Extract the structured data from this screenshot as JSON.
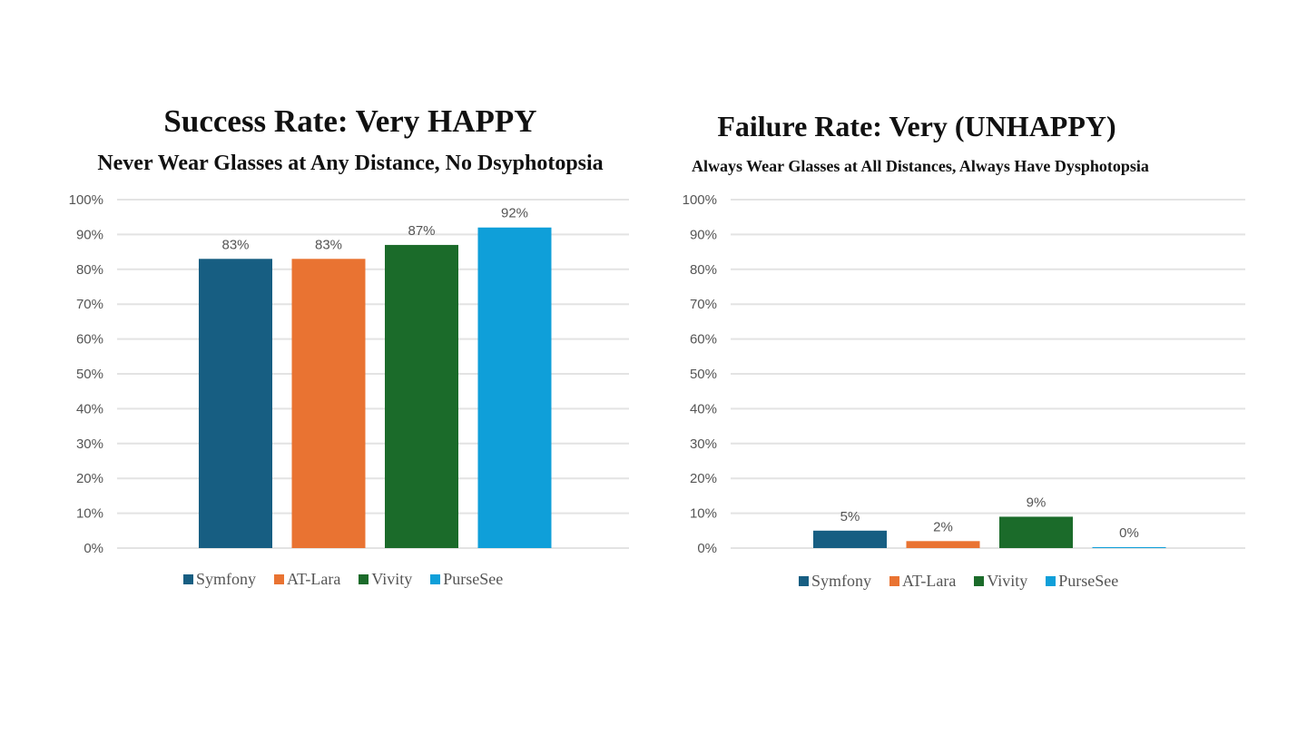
{
  "chart_data": [
    {
      "type": "bar",
      "title": "Success Rate: Very HAPPY",
      "subtitle": "Never Wear Glasses at Any Distance, No Dsyphotopsia",
      "categories": [
        "Symfony",
        "AT-Lara",
        "Vivity",
        "PurseSee"
      ],
      "values": [
        83,
        83,
        87,
        92
      ],
      "data_labels": [
        "83%",
        "83%",
        "87%",
        "92%"
      ],
      "colors": [
        "#175e82",
        "#e97332",
        "#1b6b2a",
        "#0f9fd9"
      ],
      "yticks": [
        "0%",
        "10%",
        "20%",
        "30%",
        "40%",
        "50%",
        "60%",
        "70%",
        "80%",
        "90%",
        "100%"
      ],
      "ylim": [
        0,
        100
      ],
      "grid": true,
      "legend": "bottom"
    },
    {
      "type": "bar",
      "title": "Failure Rate: Very (UNHAPPY)",
      "subtitle": "Always Wear Glasses at All Distances, Always Have Dysphotopsia",
      "categories": [
        "Symfony",
        "AT-Lara",
        "Vivity",
        "PurseSee"
      ],
      "values": [
        5,
        2,
        9,
        0
      ],
      "data_labels": [
        "5%",
        "2%",
        "9%",
        "0%"
      ],
      "colors": [
        "#175e82",
        "#e97332",
        "#1b6b2a",
        "#0f9fd9"
      ],
      "yticks": [
        "0%",
        "10%",
        "20%",
        "30%",
        "40%",
        "50%",
        "60%",
        "70%",
        "80%",
        "90%",
        "100%"
      ],
      "ylim": [
        0,
        100
      ],
      "grid": true,
      "legend": "bottom"
    }
  ]
}
